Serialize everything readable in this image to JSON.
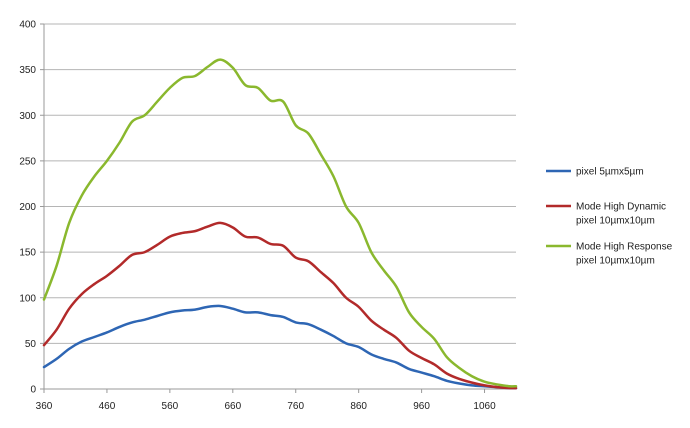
{
  "chart_data": {
    "type": "line",
    "title": "",
    "xlabel": "",
    "ylabel": "",
    "xlim": [
      360,
      1110
    ],
    "ylim": [
      0,
      400
    ],
    "x_ticks": [
      360,
      460,
      560,
      660,
      760,
      860,
      960,
      1060
    ],
    "y_ticks": [
      0,
      50,
      100,
      150,
      200,
      250,
      300,
      350,
      400
    ],
    "grid": "horizontal",
    "legend_position": "right",
    "series": [
      {
        "name_lines": [
          "pixel 5µmx5µm"
        ],
        "color": "#2E66B4",
        "points": [
          [
            360,
            24
          ],
          [
            380,
            33
          ],
          [
            400,
            44
          ],
          [
            420,
            52
          ],
          [
            440,
            57
          ],
          [
            460,
            62
          ],
          [
            480,
            68
          ],
          [
            500,
            73
          ],
          [
            520,
            76
          ],
          [
            540,
            80
          ],
          [
            560,
            84
          ],
          [
            580,
            86
          ],
          [
            600,
            87
          ],
          [
            620,
            90
          ],
          [
            640,
            91
          ],
          [
            660,
            88
          ],
          [
            680,
            84
          ],
          [
            700,
            84
          ],
          [
            720,
            81
          ],
          [
            740,
            79
          ],
          [
            760,
            73
          ],
          [
            780,
            71
          ],
          [
            800,
            65
          ],
          [
            820,
            58
          ],
          [
            840,
            50
          ],
          [
            860,
            46
          ],
          [
            880,
            38
          ],
          [
            900,
            33
          ],
          [
            920,
            29
          ],
          [
            940,
            22
          ],
          [
            960,
            18
          ],
          [
            980,
            14
          ],
          [
            1000,
            9
          ],
          [
            1020,
            6
          ],
          [
            1040,
            4
          ],
          [
            1060,
            3
          ],
          [
            1080,
            2
          ],
          [
            1100,
            1
          ],
          [
            1110,
            1
          ]
        ]
      },
      {
        "name_lines": [
          "Mode High Dynamic",
          "pixel 10µmx10µm"
        ],
        "color": "#B22A2A",
        "points": [
          [
            360,
            48
          ],
          [
            380,
            65
          ],
          [
            400,
            88
          ],
          [
            420,
            104
          ],
          [
            440,
            115
          ],
          [
            460,
            124
          ],
          [
            480,
            135
          ],
          [
            500,
            147
          ],
          [
            520,
            150
          ],
          [
            540,
            158
          ],
          [
            560,
            167
          ],
          [
            580,
            171
          ],
          [
            600,
            173
          ],
          [
            620,
            178
          ],
          [
            640,
            182
          ],
          [
            660,
            177
          ],
          [
            680,
            167
          ],
          [
            700,
            166
          ],
          [
            720,
            159
          ],
          [
            740,
            157
          ],
          [
            760,
            144
          ],
          [
            780,
            140
          ],
          [
            800,
            128
          ],
          [
            820,
            116
          ],
          [
            840,
            100
          ],
          [
            860,
            90
          ],
          [
            880,
            75
          ],
          [
            900,
            65
          ],
          [
            920,
            56
          ],
          [
            940,
            42
          ],
          [
            960,
            34
          ],
          [
            980,
            27
          ],
          [
            1000,
            17
          ],
          [
            1020,
            11
          ],
          [
            1040,
            7
          ],
          [
            1060,
            4
          ],
          [
            1080,
            2
          ],
          [
            1100,
            1
          ],
          [
            1110,
            1
          ]
        ]
      },
      {
        "name_lines": [
          "Mode High Response",
          "pixel 10µmx10µm"
        ],
        "color": "#8AB82E",
        "points": [
          [
            360,
            98
          ],
          [
            380,
            135
          ],
          [
            400,
            182
          ],
          [
            420,
            212
          ],
          [
            440,
            233
          ],
          [
            460,
            250
          ],
          [
            480,
            270
          ],
          [
            500,
            293
          ],
          [
            520,
            300
          ],
          [
            540,
            315
          ],
          [
            560,
            330
          ],
          [
            580,
            341
          ],
          [
            600,
            343
          ],
          [
            620,
            353
          ],
          [
            640,
            361
          ],
          [
            660,
            352
          ],
          [
            680,
            333
          ],
          [
            700,
            330
          ],
          [
            720,
            316
          ],
          [
            740,
            315
          ],
          [
            760,
            289
          ],
          [
            780,
            280
          ],
          [
            800,
            257
          ],
          [
            820,
            233
          ],
          [
            840,
            200
          ],
          [
            860,
            182
          ],
          [
            880,
            150
          ],
          [
            900,
            130
          ],
          [
            920,
            112
          ],
          [
            940,
            84
          ],
          [
            960,
            68
          ],
          [
            980,
            55
          ],
          [
            1000,
            35
          ],
          [
            1020,
            23
          ],
          [
            1040,
            14
          ],
          [
            1060,
            8
          ],
          [
            1080,
            5
          ],
          [
            1100,
            3
          ],
          [
            1110,
            3
          ]
        ]
      }
    ]
  }
}
